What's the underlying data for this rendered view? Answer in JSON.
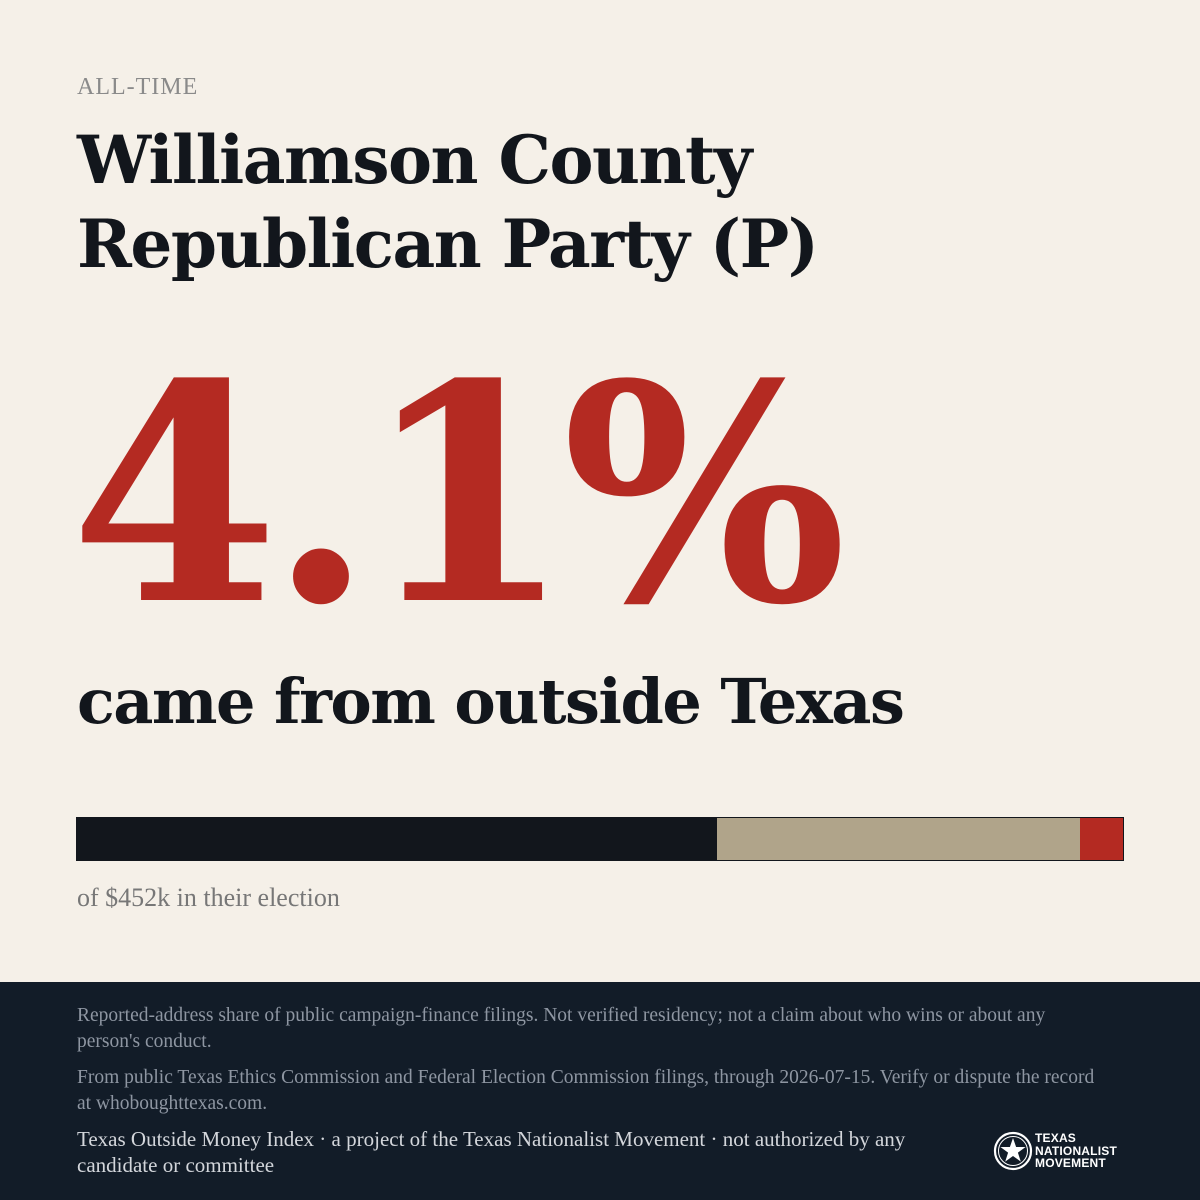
{
  "eyebrow": "ALL-TIME",
  "title": "Williamson County Republican Party (P)",
  "headline": {
    "value": "4.1%",
    "subtitle": "came from outside Texas"
  },
  "bar": {
    "colors": {
      "dark": "#12161c",
      "tan": "#b0a48a",
      "red": "#b42a22"
    },
    "segments": [
      {
        "key": "dark",
        "fraction": 0.612
      },
      {
        "key": "tan",
        "fraction": 0.347
      },
      {
        "key": "red",
        "fraction": 0.041
      }
    ]
  },
  "caption": "of $452k in their election",
  "footer": {
    "note1": "Reported-address share of public campaign-finance filings. Not verified residency; not a claim about who wins or about any person's conduct.",
    "note2": "From public Texas Ethics Commission and Federal Election Commission filings, through 2026-07-15. Verify or dispute the record at whoboughttexas.com.",
    "note3": "Texas Outside Money Index · a project of the Texas Nationalist Movement · not authorized by any candidate or committee",
    "logo": {
      "icon": "star-seal-icon",
      "lines": [
        "TEXAS",
        "NATIONALIST",
        "MOVEMENT"
      ]
    }
  },
  "colors": {
    "background": "#f5f0e8",
    "accent": "#b42a22",
    "ink": "#12161c",
    "footer_bg": "#121c28"
  }
}
